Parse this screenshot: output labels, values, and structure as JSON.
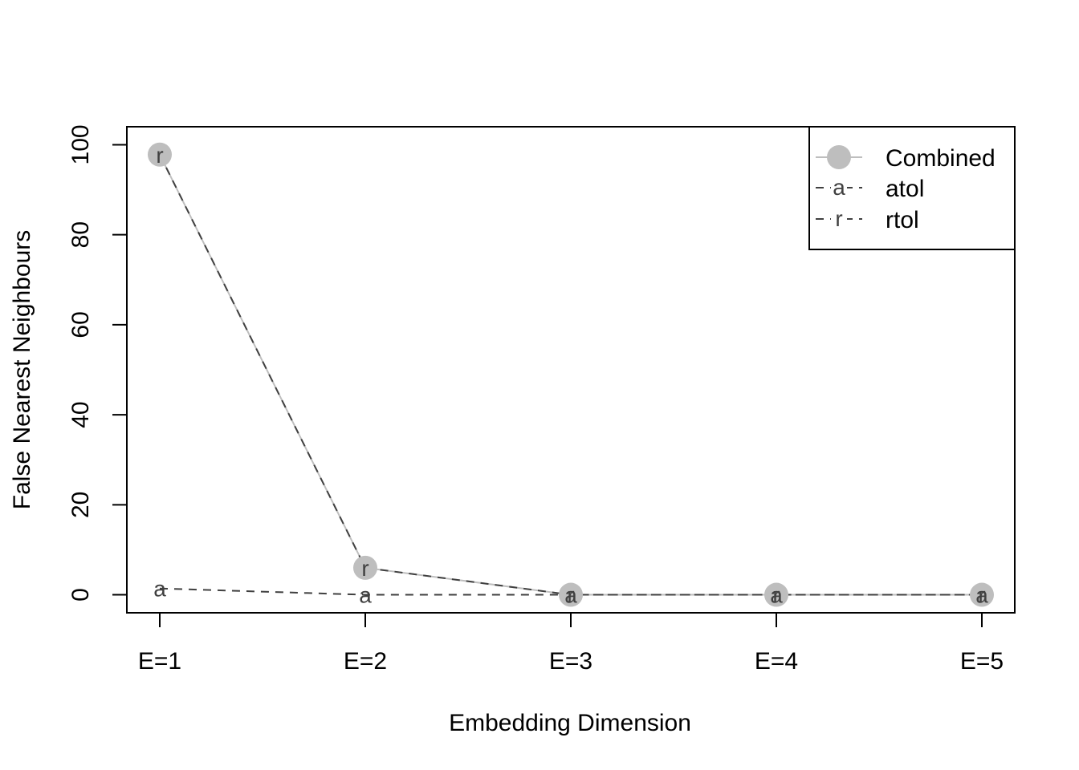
{
  "chart_data": {
    "type": "line",
    "title": "",
    "xlabel": "Embedding Dimension",
    "ylabel": "False Nearest Neighbours",
    "categories": [
      "E=1",
      "E=2",
      "E=3",
      "E=4",
      "E=5"
    ],
    "ylim": [
      -4,
      104
    ],
    "yticks": [
      0,
      20,
      40,
      60,
      80,
      100
    ],
    "grid": false,
    "legend_position": "top-right",
    "series": [
      {
        "name": "Combined",
        "values": [
          97.8,
          6.0,
          0,
          0,
          0
        ],
        "color": "#bebebe",
        "marker": "filled-circle",
        "line_style": "solid"
      },
      {
        "name": "atol",
        "values": [
          1.4,
          0,
          0,
          0,
          0
        ],
        "color": "#404040",
        "marker": "a",
        "line_style": "dashed"
      },
      {
        "name": "rtol",
        "values": [
          97.8,
          6.0,
          0,
          0,
          0
        ],
        "color": "#404040",
        "marker": "r",
        "line_style": "dashed"
      }
    ]
  }
}
